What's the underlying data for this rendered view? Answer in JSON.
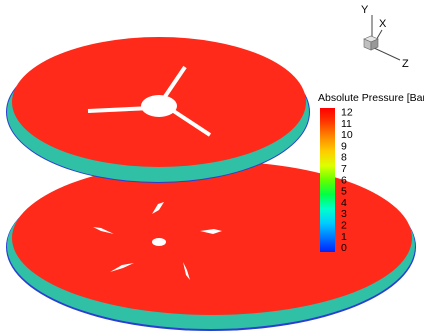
{
  "colors": {
    "contour_fill": "#ff2a1a",
    "contour_edge": "#e8261a",
    "rim_outer": "#2fc0a6",
    "rim_blue": "#2a3fd0",
    "hole_white": "#ffffff"
  },
  "axes_triad": {
    "y_label": "Y",
    "x_label": "X",
    "z_label": "Z"
  },
  "legend": {
    "title": "Absolute Pressure [Bar]",
    "ticks": [
      "12",
      "11",
      "10",
      "9",
      "8",
      "7",
      "6",
      "5",
      "4",
      "3",
      "2",
      "1",
      "0"
    ],
    "colormap": [
      "#ff0000",
      "#ff4000",
      "#ff8000",
      "#ffbf00",
      "#ffff00",
      "#bfff00",
      "#40ff00",
      "#00ff40",
      "#00ffbf",
      "#00bfff",
      "#0080ff",
      "#0040ff",
      "#0000ff"
    ]
  }
}
